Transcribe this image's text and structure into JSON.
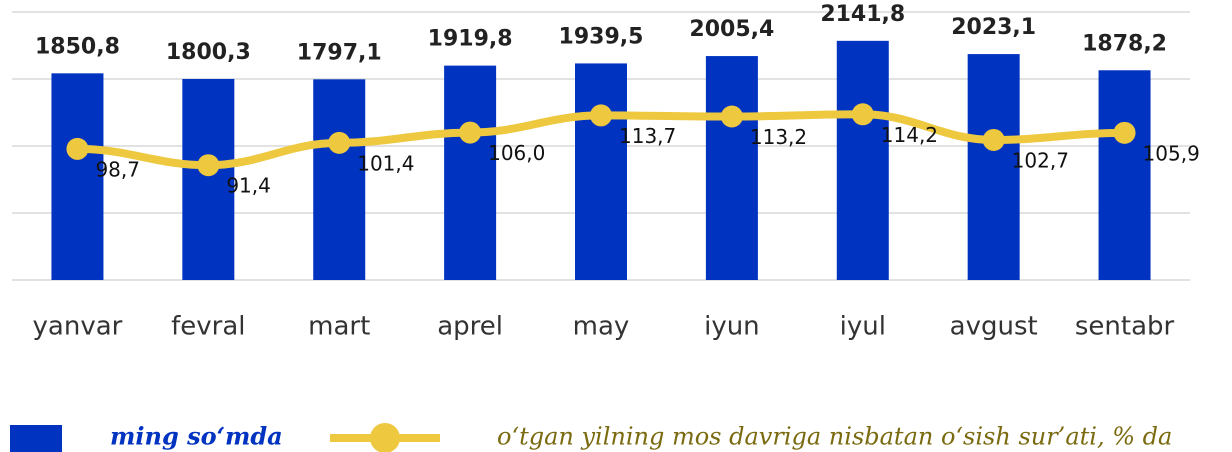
{
  "chart_data": {
    "type": "bar_line",
    "categories": [
      "yanvar",
      "fevral",
      "mart",
      "aprel",
      "may",
      "iyun",
      "iyul",
      "avgust",
      "sentabr"
    ],
    "series": [
      {
        "name": "ming so‘mda",
        "type": "bar",
        "color": "#0033c0",
        "values": [
          1850.8,
          1800.3,
          1797.1,
          1919.8,
          1939.5,
          2005.4,
          2141.8,
          2023.1,
          1878.2
        ],
        "value_labels": [
          "1850,8",
          "1800,3",
          "1797,1",
          "1919,8",
          "1939,5",
          "2005,4",
          "2141,8",
          "2023,1",
          "1878,2"
        ]
      },
      {
        "name": "o‘tgan yilning mos davriga nisbatan o‘sish sur’ati, % da",
        "type": "line",
        "axis": "y2",
        "color": "#eec83e",
        "values": [
          98.7,
          91.4,
          101.4,
          106.0,
          113.7,
          113.2,
          114.2,
          102.7,
          105.9
        ],
        "value_labels": [
          "98,7",
          "91,4",
          "101,4",
          "106,0",
          "113,7",
          "113,2",
          "114,2",
          "102,7",
          "105,9"
        ]
      }
    ],
    "ylim": [
      0,
      2400
    ],
    "yticks": [
      0,
      600,
      1200,
      1800,
      2400
    ],
    "y2lim": [
      40,
      160
    ],
    "grid": true
  }
}
